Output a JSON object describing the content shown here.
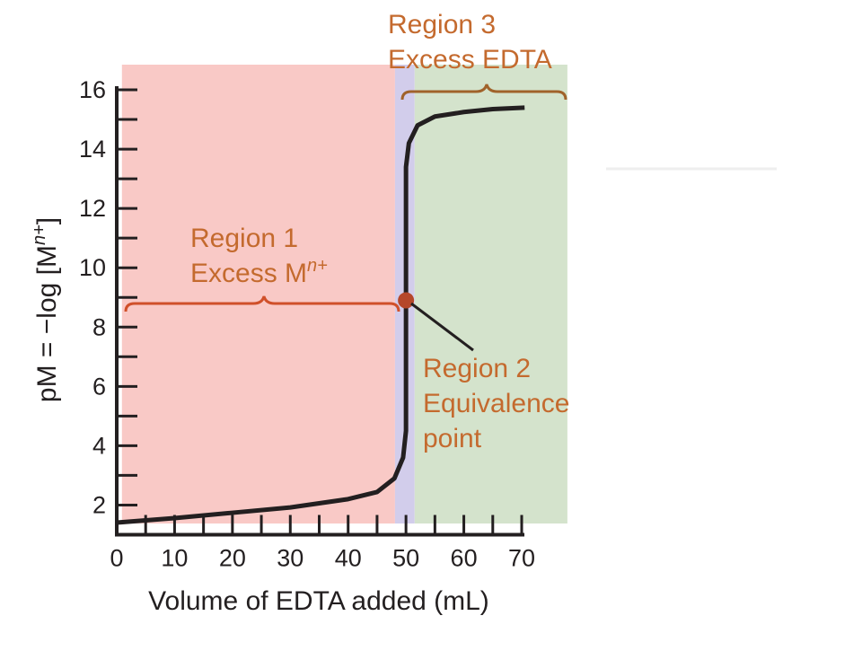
{
  "chart_data": {
    "type": "line",
    "x_label": "Volume of EDTA added (mL)",
    "y_label": [
      "pM = −log [M",
      "n+",
      "]"
    ],
    "xlim": [
      0,
      70
    ],
    "ylim": [
      1,
      16
    ],
    "xticks": [
      0,
      10,
      20,
      30,
      40,
      50,
      60,
      70
    ],
    "xminorticks": [
      5,
      15,
      25,
      35,
      45,
      55,
      65
    ],
    "yticks": [
      2,
      4,
      6,
      8,
      10,
      12,
      14,
      16
    ],
    "yminorticks": [
      3,
      5,
      7,
      9,
      11,
      13,
      15
    ],
    "series": [
      {
        "name": "pM",
        "color": "#231f20",
        "x": [
          0,
          10,
          20,
          30,
          40,
          45,
          48,
          49.5,
          50,
          50,
          50.5,
          52,
          55,
          60,
          65,
          70.5
        ],
        "values": [
          1.41,
          1.56,
          1.74,
          1.92,
          2.2,
          2.44,
          2.9,
          3.6,
          4.5,
          13.4,
          14.2,
          14.8,
          15.1,
          15.25,
          15.35,
          15.4
        ]
      }
    ],
    "equivalence_point": {
      "x": 50,
      "y": 8.9,
      "color": "#b5472a"
    },
    "regions": [
      {
        "label": [
          "Region 1",
          "Excess M",
          "n+"
        ],
        "x_range": [
          0.9,
          48.1
        ],
        "color": "#f9c9c6"
      },
      {
        "label": [
          "Region 2",
          "Equivalence",
          "point"
        ],
        "x_range": [
          48.1,
          51.5
        ],
        "color": "#d2cdeb"
      },
      {
        "label": [
          "Region 3",
          "Excess EDTA"
        ],
        "x_range": [
          51.5,
          77.9
        ],
        "color": "#d4e3cc"
      }
    ]
  }
}
